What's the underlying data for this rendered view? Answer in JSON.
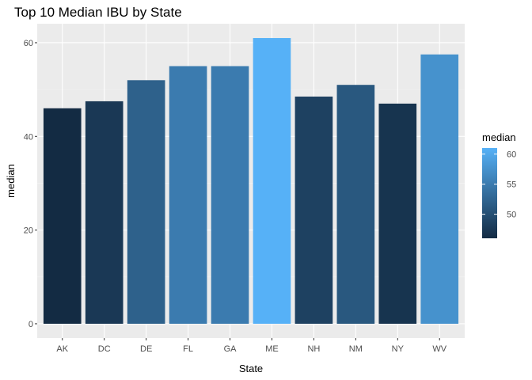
{
  "chart_data": {
    "type": "bar",
    "title": "Top 10 Median IBU by State",
    "xlabel": "State",
    "ylabel": "median",
    "categories": [
      "AK",
      "DC",
      "DE",
      "FL",
      "GA",
      "ME",
      "NH",
      "NM",
      "NY",
      "WV"
    ],
    "values": [
      46,
      47.5,
      52,
      55,
      55,
      61,
      48.5,
      51,
      47,
      57.5
    ],
    "ylim": [
      -3.05,
      64.05
    ],
    "yticks": [
      0,
      20,
      40,
      60
    ],
    "grid": true,
    "legend": {
      "title": "median",
      "position": "right",
      "type": "colorbar",
      "breaks": [
        50,
        55,
        60
      ],
      "range": [
        46,
        61
      ],
      "low_color": "#132B43",
      "high_color": "#56B1F7"
    }
  },
  "colors": {
    "panel_background": "#EBEBEB",
    "grid_major": "#FFFFFF",
    "grid_minor": "#F5F5F5"
  }
}
